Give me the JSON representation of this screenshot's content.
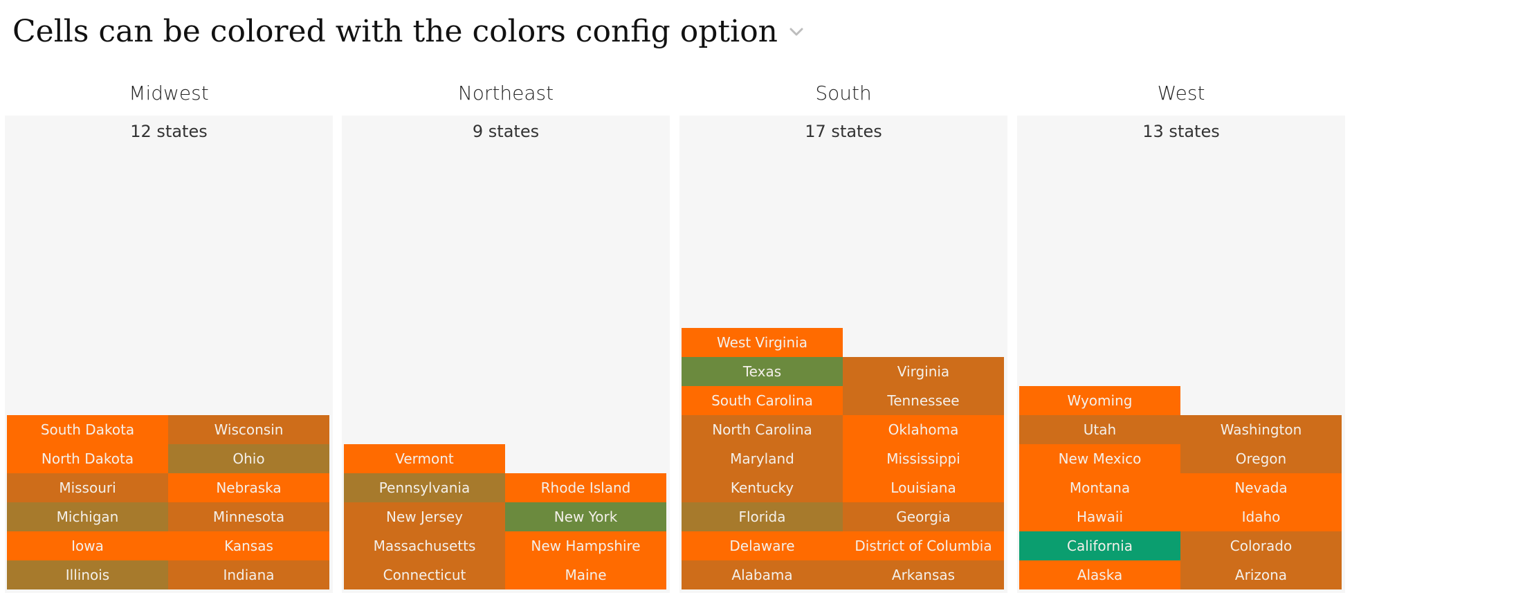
{
  "title": "Cells can be colored with the colors config option",
  "icons": {
    "menu": "chevron-down-icon"
  },
  "chart_data": {
    "type": "waffle",
    "palette": {
      "orange": "#ff6b00",
      "burnt": "#ce6d1a",
      "olive_brown": "#a77a2c",
      "olive_green": "#6b8a3e",
      "teal": "#0b9e6f",
      "panel_bg": "#f6f6f6"
    },
    "groups": [
      {
        "name": "Midwest",
        "count_label": "12 states",
        "columns": [
          [
            {
              "label": "Illinois",
              "color": "#a77a2c"
            },
            {
              "label": "Iowa",
              "color": "#ff6b00"
            },
            {
              "label": "Michigan",
              "color": "#a77a2c"
            },
            {
              "label": "Missouri",
              "color": "#ce6d1a"
            },
            {
              "label": "North Dakota",
              "color": "#ff6b00"
            },
            {
              "label": "South Dakota",
              "color": "#ff6b00"
            }
          ],
          [
            {
              "label": "Indiana",
              "color": "#ce6d1a"
            },
            {
              "label": "Kansas",
              "color": "#ff6b00"
            },
            {
              "label": "Minnesota",
              "color": "#ce6d1a"
            },
            {
              "label": "Nebraska",
              "color": "#ff6b00"
            },
            {
              "label": "Ohio",
              "color": "#a77a2c"
            },
            {
              "label": "Wisconsin",
              "color": "#ce6d1a"
            }
          ]
        ]
      },
      {
        "name": "Northeast",
        "count_label": "9 states",
        "columns": [
          [
            {
              "label": "Connecticut",
              "color": "#ce6d1a"
            },
            {
              "label": "Massachusetts",
              "color": "#ce6d1a"
            },
            {
              "label": "New Jersey",
              "color": "#ce6d1a"
            },
            {
              "label": "Pennsylvania",
              "color": "#a77a2c"
            },
            {
              "label": "Vermont",
              "color": "#ff6b00"
            }
          ],
          [
            {
              "label": "Maine",
              "color": "#ff6b00"
            },
            {
              "label": "New Hampshire",
              "color": "#ff6b00"
            },
            {
              "label": "New York",
              "color": "#6b8a3e"
            },
            {
              "label": "Rhode Island",
              "color": "#ff6b00"
            }
          ]
        ]
      },
      {
        "name": "South",
        "count_label": "17 states",
        "columns": [
          [
            {
              "label": "Alabama",
              "color": "#ce6d1a"
            },
            {
              "label": "Delaware",
              "color": "#ff6b00"
            },
            {
              "label": "Florida",
              "color": "#a77a2c"
            },
            {
              "label": "Kentucky",
              "color": "#ce6d1a"
            },
            {
              "label": "Maryland",
              "color": "#ce6d1a"
            },
            {
              "label": "North Carolina",
              "color": "#ce6d1a"
            },
            {
              "label": "South Carolina",
              "color": "#ff6b00"
            },
            {
              "label": "Texas",
              "color": "#6b8a3e"
            },
            {
              "label": "West Virginia",
              "color": "#ff6b00"
            }
          ],
          [
            {
              "label": "Arkansas",
              "color": "#ce6d1a"
            },
            {
              "label": "District of Columbia",
              "color": "#ff6b00"
            },
            {
              "label": "Georgia",
              "color": "#ce6d1a"
            },
            {
              "label": "Louisiana",
              "color": "#ff6b00"
            },
            {
              "label": "Mississippi",
              "color": "#ff6b00"
            },
            {
              "label": "Oklahoma",
              "color": "#ff6b00"
            },
            {
              "label": "Tennessee",
              "color": "#ce6d1a"
            },
            {
              "label": "Virginia",
              "color": "#ce6d1a"
            }
          ]
        ]
      },
      {
        "name": "West",
        "count_label": "13 states",
        "columns": [
          [
            {
              "label": "Alaska",
              "color": "#ff6b00"
            },
            {
              "label": "California",
              "color": "#0b9e6f"
            },
            {
              "label": "Hawaii",
              "color": "#ff6b00"
            },
            {
              "label": "Montana",
              "color": "#ff6b00"
            },
            {
              "label": "New Mexico",
              "color": "#ff6b00"
            },
            {
              "label": "Utah",
              "color": "#ce6d1a"
            },
            {
              "label": "Wyoming",
              "color": "#ff6b00"
            }
          ],
          [
            {
              "label": "Arizona",
              "color": "#ce6d1a"
            },
            {
              "label": "Colorado",
              "color": "#ce6d1a"
            },
            {
              "label": "Idaho",
              "color": "#ff6b00"
            },
            {
              "label": "Nevada",
              "color": "#ff6b00"
            },
            {
              "label": "Oregon",
              "color": "#ce6d1a"
            },
            {
              "label": "Washington",
              "color": "#ce6d1a"
            }
          ]
        ]
      }
    ]
  }
}
